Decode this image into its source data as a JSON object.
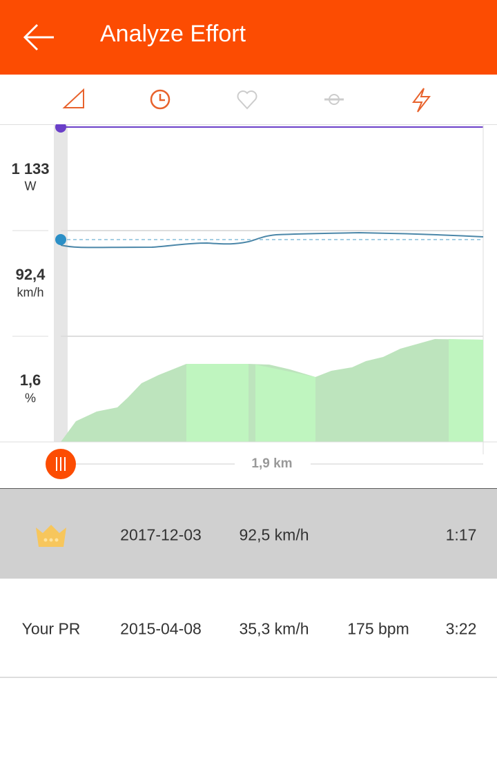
{
  "header": {
    "title": "Analyze Effort"
  },
  "panels": [
    {
      "value": "1 133",
      "unit": "W"
    },
    {
      "value": "92,4",
      "unit": "km/h"
    },
    {
      "value": "1,6",
      "unit": "%"
    }
  ],
  "scrubber": {
    "label": "1,9 km"
  },
  "rows": [
    {
      "date": "2017-12-03",
      "speed": "92,5 km/h",
      "time": "1:17"
    },
    {
      "name": "Your PR",
      "date": "2015-04-08",
      "speed": "35,3 km/h",
      "heart_rate": "175 bpm",
      "time": "3:22"
    }
  ]
}
